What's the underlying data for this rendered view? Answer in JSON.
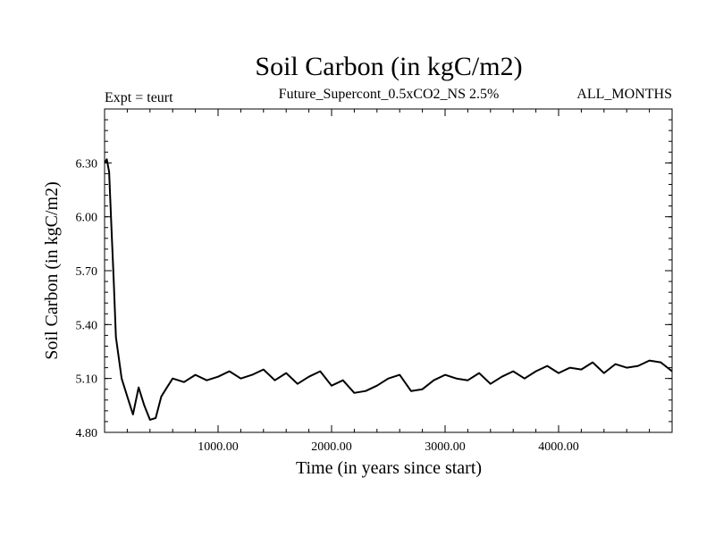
{
  "chart_data": {
    "type": "line",
    "title": "Soil Carbon (in kgC/m2)",
    "subtitle": "Future_Supercont_0.5xCO2_NS 2.5%",
    "left_annotation": "Expt = teurt",
    "right_annotation": "ALL_MONTHS",
    "xlabel": "Time (in years since start)",
    "ylabel": "Soil Carbon (in kgC/m2)",
    "xlim": [
      0,
      5000
    ],
    "ylim": [
      4.8,
      6.6
    ],
    "x_ticks": [
      1000,
      2000,
      3000,
      4000
    ],
    "x_tick_labels": [
      "1000.00",
      "2000.00",
      "3000.00",
      "4000.00"
    ],
    "y_ticks": [
      4.8,
      5.1,
      5.4,
      5.7,
      6.0,
      6.3
    ],
    "y_tick_labels": [
      "4.80",
      "5.10",
      "5.40",
      "5.70",
      "6.00",
      "6.30"
    ],
    "grid": false,
    "line_color": "#000000",
    "series": [
      {
        "x": [
          0,
          20,
          40,
          60,
          80,
          100,
          150,
          200,
          250,
          300,
          350,
          400,
          450,
          500,
          550,
          600,
          700,
          800,
          900,
          1000,
          1100,
          1200,
          1300,
          1400,
          1500,
          1600,
          1700,
          1800,
          1900,
          2000,
          2100,
          2200,
          2300,
          2400,
          2500,
          2600,
          2700,
          2800,
          2900,
          3000,
          3100,
          3200,
          3300,
          3400,
          3500,
          3600,
          3700,
          3800,
          3900,
          4000,
          4100,
          4200,
          4300,
          4400,
          4500,
          4600,
          4700,
          4800,
          4900,
          5000
        ],
        "y": [
          6.3,
          6.32,
          6.25,
          5.95,
          5.65,
          5.33,
          5.1,
          5.0,
          4.9,
          5.05,
          4.95,
          4.87,
          4.88,
          5.0,
          5.05,
          5.1,
          5.08,
          5.12,
          5.09,
          5.11,
          5.14,
          5.1,
          5.12,
          5.15,
          5.09,
          5.13,
          5.07,
          5.11,
          5.14,
          5.06,
          5.09,
          5.02,
          5.03,
          5.06,
          5.1,
          5.12,
          5.03,
          5.04,
          5.09,
          5.12,
          5.1,
          5.09,
          5.13,
          5.07,
          5.11,
          5.14,
          5.1,
          5.14,
          5.17,
          5.13,
          5.16,
          5.15,
          5.19,
          5.13,
          5.18,
          5.16,
          5.17,
          5.2,
          5.19,
          5.14
        ]
      }
    ]
  }
}
